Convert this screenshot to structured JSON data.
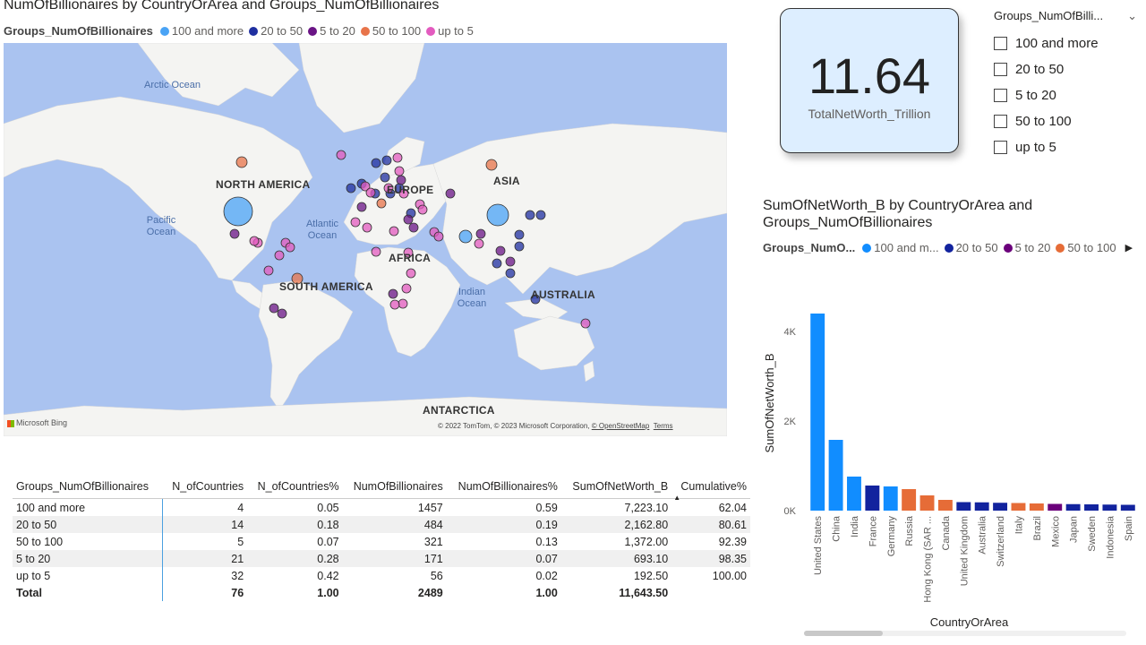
{
  "map_visual": {
    "title": "NumOfBillionaires by CountryOrArea and Groups_NumOfBillionaires",
    "legend_title": "Groups_NumOfBillionaires",
    "legend": [
      {
        "label": "100 and more",
        "color": "#4aa3f5"
      },
      {
        "label": "20 to 50",
        "color": "#1f2fa0"
      },
      {
        "label": "5 to 20",
        "color": "#6a1485"
      },
      {
        "label": "50 to 100",
        "color": "#e8744a"
      },
      {
        "label": "up to 5",
        "color": "#e35bbf"
      }
    ],
    "oceans": [
      "Arctic Ocean",
      "Pacific Ocean",
      "Atlantic Ocean",
      "Indian Ocean"
    ],
    "continents": [
      "NORTH AMERICA",
      "EUROPE",
      "ASIA",
      "AFRICA",
      "SOUTH AMERICA",
      "AUSTRALIA",
      "ANTARCTICA"
    ],
    "logo": "Microsoft Bing",
    "attribution": "© 2022 TomTom, © 2023 Microsoft Corporation,",
    "attribution_link": "© OpenStreetMap",
    "terms": "Terms"
  },
  "card": {
    "value": "11.64",
    "label": "TotalNetWorth_Trillion"
  },
  "slicer": {
    "title": "Groups_NumOfBilli...",
    "options": [
      "100 and more",
      "20 to 50",
      "5 to 20",
      "50 to 100",
      "up to 5"
    ]
  },
  "table": {
    "headers": [
      "Groups_NumOfBillionaires",
      "N_ofCountries",
      "N_ofCountries%",
      "NumOfBillionaires",
      "NumOfBillionaires%",
      "SumOfNetWorth_B",
      "Cumulative%"
    ],
    "sort_indicator": "▲",
    "rows": [
      [
        "100 and more",
        "4",
        "0.05",
        "1457",
        "0.59",
        "7,223.10",
        "62.04"
      ],
      [
        "20 to 50",
        "14",
        "0.18",
        "484",
        "0.19",
        "2,162.80",
        "80.61"
      ],
      [
        "50 to 100",
        "5",
        "0.07",
        "321",
        "0.13",
        "1,372.00",
        "92.39"
      ],
      [
        "5 to 20",
        "21",
        "0.28",
        "171",
        "0.07",
        "693.10",
        "98.35"
      ],
      [
        "up to 5",
        "32",
        "0.42",
        "56",
        "0.02",
        "192.50",
        "100.00"
      ]
    ],
    "total": [
      "Total",
      "76",
      "1.00",
      "2489",
      "1.00",
      "11,643.50",
      ""
    ]
  },
  "bar_visual": {
    "title_line1": "SumOfNetWorth_B by CountryOrArea and",
    "title_line2": "Groups_NumOfBillionaires",
    "legend_title": "Groups_NumO...",
    "legend": [
      {
        "label": "100 and m...",
        "color": "#118dff"
      },
      {
        "label": "20 to 50",
        "color": "#12239e"
      },
      {
        "label": "5 to 20",
        "color": "#6b007b"
      },
      {
        "label": "50 to 100",
        "color": "#e66c37"
      }
    ],
    "legend_arrow": "▶"
  },
  "chart_data": {
    "type": "bar",
    "xlabel": "CountryOrArea",
    "ylabel": "SumOfNetWorth_B",
    "ylim": [
      0,
      4800
    ],
    "yticks": [
      0,
      2000,
      4000
    ],
    "ytick_labels": [
      "0K",
      "2K",
      "4K"
    ],
    "categories": [
      "United States",
      "China",
      "India",
      "France",
      "Germany",
      "Russia",
      "Hong Kong (SAR ...",
      "Canada",
      "United Kingdom",
      "Australia",
      "Switzerland",
      "Italy",
      "Brazil",
      "Mexico",
      "Japan",
      "Sweden",
      "Indonesia",
      "Spain"
    ],
    "values": [
      4400,
      1580,
      760,
      560,
      540,
      480,
      340,
      240,
      190,
      185,
      175,
      170,
      160,
      150,
      145,
      140,
      135,
      130
    ],
    "groups": [
      "100 and more",
      "100 and more",
      "100 and more",
      "20 to 50",
      "100 and more",
      "50 to 100",
      "50 to 100",
      "50 to 100",
      "20 to 50",
      "20 to 50",
      "20 to 50",
      "50 to 100",
      "50 to 100",
      "5 to 20",
      "20 to 50",
      "20 to 50",
      "20 to 50",
      "20 to 50"
    ],
    "group_colors": {
      "100 and more": "#118dff",
      "20 to 50": "#12239e",
      "5 to 20": "#6b007b",
      "50 to 100": "#e66c37"
    }
  }
}
